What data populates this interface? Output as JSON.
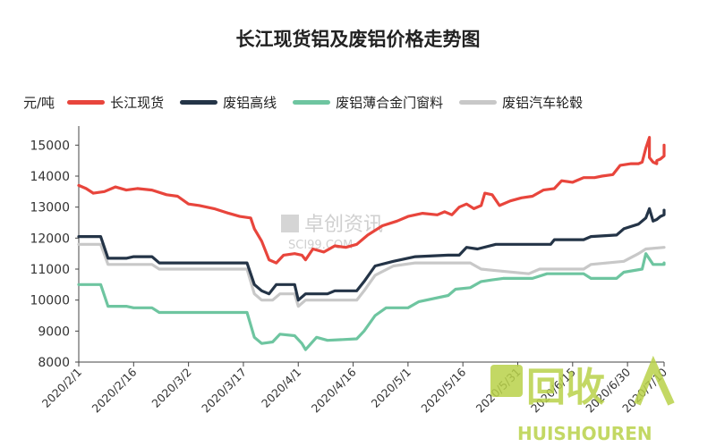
{
  "chart_data": {
    "type": "line",
    "title": "长江现货铝及废铝价格走势图",
    "ylabel": "元/吨",
    "ylim": [
      8000,
      15500
    ],
    "yticks": [
      8000,
      9000,
      10000,
      11000,
      12000,
      13000,
      14000,
      15000
    ],
    "x_start": "2020/2/1",
    "x_end": "2020/7/10",
    "xtick_labels": [
      "2020/2/1",
      "2020/2/16",
      "2020/3/2",
      "2020/3/17",
      "2020/4/1",
      "2020/4/16",
      "2020/5/1",
      "2020/5/16",
      "2020/5/31",
      "2020/6/15",
      "2020/6/30",
      "2020/7/10"
    ],
    "legend_position": "top",
    "grid": false,
    "series": [
      {
        "name": "长江现货",
        "color": "#e8453c",
        "points": [
          [
            "2020/2/1",
            13700
          ],
          [
            "2020/2/3",
            13600
          ],
          [
            "2020/2/5",
            13450
          ],
          [
            "2020/2/8",
            13500
          ],
          [
            "2020/2/11",
            13650
          ],
          [
            "2020/2/14",
            13550
          ],
          [
            "2020/2/17",
            13600
          ],
          [
            "2020/2/21",
            13550
          ],
          [
            "2020/2/25",
            13400
          ],
          [
            "2020/2/28",
            13350
          ],
          [
            "2020/3/2",
            13100
          ],
          [
            "2020/3/5",
            13050
          ],
          [
            "2020/3/9",
            12950
          ],
          [
            "2020/3/13",
            12800
          ],
          [
            "2020/3/16",
            12700
          ],
          [
            "2020/3/19",
            12650
          ],
          [
            "2020/3/20",
            12300
          ],
          [
            "2020/3/22",
            11900
          ],
          [
            "2020/3/24",
            11300
          ],
          [
            "2020/3/26",
            11200
          ],
          [
            "2020/3/28",
            11450
          ],
          [
            "2020/3/31",
            11500
          ],
          [
            "2020/4/2",
            11450
          ],
          [
            "2020/4/3",
            11300
          ],
          [
            "2020/4/5",
            11650
          ],
          [
            "2020/4/8",
            11550
          ],
          [
            "2020/4/11",
            11750
          ],
          [
            "2020/4/14",
            11700
          ],
          [
            "2020/4/17",
            11800
          ],
          [
            "2020/4/20",
            12100
          ],
          [
            "2020/4/24",
            12400
          ],
          [
            "2020/4/28",
            12550
          ],
          [
            "2020/5/1",
            12700
          ],
          [
            "2020/5/5",
            12800
          ],
          [
            "2020/5/9",
            12750
          ],
          [
            "2020/5/11",
            12850
          ],
          [
            "2020/5/13",
            12750
          ],
          [
            "2020/5/15",
            13000
          ],
          [
            "2020/5/17",
            13100
          ],
          [
            "2020/5/19",
            12950
          ],
          [
            "2020/5/21",
            13050
          ],
          [
            "2020/5/22",
            13450
          ],
          [
            "2020/5/24",
            13400
          ],
          [
            "2020/5/26",
            13050
          ],
          [
            "2020/5/29",
            13200
          ],
          [
            "2020/6/1",
            13300
          ],
          [
            "2020/6/4",
            13350
          ],
          [
            "2020/6/7",
            13550
          ],
          [
            "2020/6/10",
            13600
          ],
          [
            "2020/6/12",
            13850
          ],
          [
            "2020/6/15",
            13800
          ],
          [
            "2020/6/18",
            13950
          ],
          [
            "2020/6/21",
            13950
          ],
          [
            "2020/6/23",
            14000
          ],
          [
            "2020/6/26",
            14050
          ],
          [
            "2020/6/28",
            14350
          ],
          [
            "2020/7/1",
            14400
          ],
          [
            "2020/7/3",
            14400
          ],
          [
            "2020/7/4",
            14450
          ],
          [
            "2020/7/5",
            14900
          ],
          [
            "2020/7/6",
            15250
          ],
          [
            "2020/7/6",
            14600
          ],
          [
            "2020/7/7",
            14450
          ],
          [
            "2020/7/8",
            14400
          ],
          [
            "2020/7/8",
            14500
          ],
          [
            "2020/7/9",
            14550
          ],
          [
            "2020/7/10",
            14650
          ],
          [
            "2020/7/10",
            14700
          ],
          [
            "2020/7/10",
            15000
          ]
        ]
      },
      {
        "name": "废铝高线",
        "color": "#243447",
        "points": [
          [
            "2020/2/1",
            12050
          ],
          [
            "2020/2/7",
            12050
          ],
          [
            "2020/2/9",
            11350
          ],
          [
            "2020/2/14",
            11350
          ],
          [
            "2020/2/16",
            11400
          ],
          [
            "2020/2/21",
            11400
          ],
          [
            "2020/2/23",
            11200
          ],
          [
            "2020/3/18",
            11200
          ],
          [
            "2020/3/20",
            10500
          ],
          [
            "2020/3/22",
            10300
          ],
          [
            "2020/3/24",
            10200
          ],
          [
            "2020/3/26",
            10500
          ],
          [
            "2020/3/31",
            10500
          ],
          [
            "2020/4/1",
            10000
          ],
          [
            "2020/4/3",
            10200
          ],
          [
            "2020/4/9",
            10200
          ],
          [
            "2020/4/11",
            10300
          ],
          [
            "2020/4/17",
            10300
          ],
          [
            "2020/4/19",
            10600
          ],
          [
            "2020/4/22",
            11100
          ],
          [
            "2020/4/27",
            11250
          ],
          [
            "2020/5/3",
            11400
          ],
          [
            "2020/5/12",
            11450
          ],
          [
            "2020/5/15",
            11450
          ],
          [
            "2020/5/17",
            11700
          ],
          [
            "2020/5/20",
            11650
          ],
          [
            "2020/5/25",
            11800
          ],
          [
            "2020/6/9",
            11800
          ],
          [
            "2020/6/10",
            11950
          ],
          [
            "2020/6/18",
            11950
          ],
          [
            "2020/6/20",
            12050
          ],
          [
            "2020/6/27",
            12100
          ],
          [
            "2020/6/29",
            12300
          ],
          [
            "2020/7/3",
            12450
          ],
          [
            "2020/7/5",
            12650
          ],
          [
            "2020/7/6",
            12950
          ],
          [
            "2020/7/7",
            12550
          ],
          [
            "2020/7/8",
            12600
          ],
          [
            "2020/7/9",
            12700
          ],
          [
            "2020/7/10",
            12750
          ],
          [
            "2020/7/10",
            12900
          ]
        ]
      },
      {
        "name": "废铝薄合金门窗料",
        "color": "#6ec5a0",
        "points": [
          [
            "2020/2/1",
            10500
          ],
          [
            "2020/2/7",
            10500
          ],
          [
            "2020/2/9",
            9800
          ],
          [
            "2020/2/14",
            9800
          ],
          [
            "2020/2/16",
            9750
          ],
          [
            "2020/2/21",
            9750
          ],
          [
            "2020/2/23",
            9600
          ],
          [
            "2020/3/18",
            9600
          ],
          [
            "2020/3/20",
            8800
          ],
          [
            "2020/3/22",
            8600
          ],
          [
            "2020/3/25",
            8650
          ],
          [
            "2020/3/27",
            8900
          ],
          [
            "2020/3/31",
            8850
          ],
          [
            "2020/4/2",
            8600
          ],
          [
            "2020/4/3",
            8400
          ],
          [
            "2020/4/6",
            8800
          ],
          [
            "2020/4/9",
            8700
          ],
          [
            "2020/4/17",
            8750
          ],
          [
            "2020/4/19",
            9000
          ],
          [
            "2020/4/22",
            9500
          ],
          [
            "2020/4/25",
            9750
          ],
          [
            "2020/5/1",
            9750
          ],
          [
            "2020/5/4",
            9950
          ],
          [
            "2020/5/12",
            10150
          ],
          [
            "2020/5/14",
            10350
          ],
          [
            "2020/5/18",
            10400
          ],
          [
            "2020/5/21",
            10600
          ],
          [
            "2020/5/24",
            10650
          ],
          [
            "2020/5/27",
            10700
          ],
          [
            "2020/6/4",
            10700
          ],
          [
            "2020/6/8",
            10850
          ],
          [
            "2020/6/18",
            10850
          ],
          [
            "2020/6/20",
            10700
          ],
          [
            "2020/6/27",
            10700
          ],
          [
            "2020/6/29",
            10900
          ],
          [
            "2020/7/4",
            11000
          ],
          [
            "2020/7/5",
            11500
          ],
          [
            "2020/7/7",
            11150
          ],
          [
            "2020/7/10",
            11150
          ],
          [
            "2020/7/10",
            11200
          ]
        ]
      },
      {
        "name": "废铝汽车轮毂",
        "color": "#c8c8c8",
        "points": [
          [
            "2020/2/1",
            11800
          ],
          [
            "2020/2/7",
            11800
          ],
          [
            "2020/2/9",
            11150
          ],
          [
            "2020/2/21",
            11150
          ],
          [
            "2020/2/23",
            11000
          ],
          [
            "2020/3/18",
            11000
          ],
          [
            "2020/3/20",
            10200
          ],
          [
            "2020/3/22",
            10000
          ],
          [
            "2020/3/25",
            10000
          ],
          [
            "2020/3/27",
            10200
          ],
          [
            "2020/3/31",
            10200
          ],
          [
            "2020/4/1",
            9800
          ],
          [
            "2020/4/3",
            10000
          ],
          [
            "2020/4/17",
            10000
          ],
          [
            "2020/4/19",
            10300
          ],
          [
            "2020/4/22",
            10800
          ],
          [
            "2020/4/27",
            11100
          ],
          [
            "2020/5/3",
            11200
          ],
          [
            "2020/5/18",
            11200
          ],
          [
            "2020/5/21",
            11000
          ],
          [
            "2020/5/25",
            10950
          ],
          [
            "2020/6/3",
            10850
          ],
          [
            "2020/6/6",
            11000
          ],
          [
            "2020/6/18",
            11000
          ],
          [
            "2020/6/20",
            11150
          ],
          [
            "2020/6/29",
            11250
          ],
          [
            "2020/7/3",
            11500
          ],
          [
            "2020/7/5",
            11650
          ],
          [
            "2020/7/10",
            11700
          ]
        ]
      }
    ]
  },
  "watermarks": {
    "center_text": "卓创资讯",
    "center_subtext": "SCI99.COM",
    "corner_text": "回收",
    "corner_subtext": "HUISHOUREN"
  }
}
